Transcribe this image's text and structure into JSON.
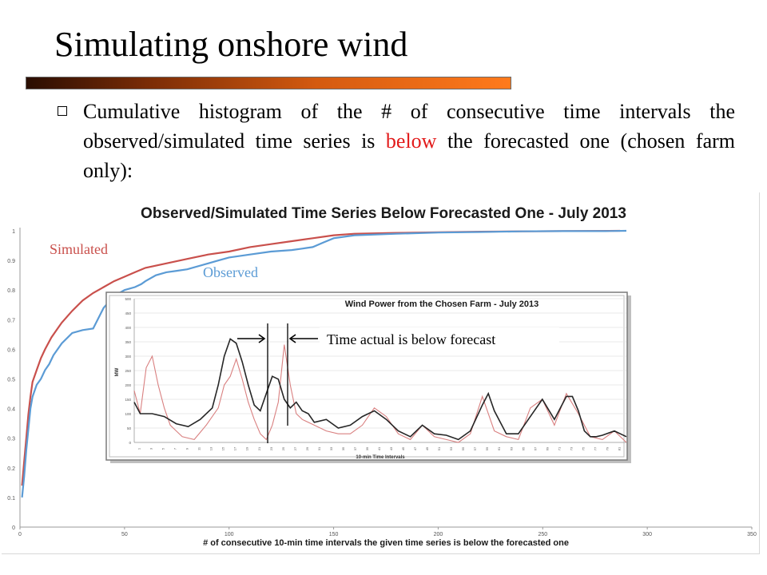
{
  "slide": {
    "title": "Simulating onshore wind",
    "bullet_part1": "Cumulative histogram of the # of consecutive time intervals the observed/simulated time series is ",
    "bullet_highlight": "below",
    "bullet_part2": " the forecasted one (chosen farm only):"
  },
  "annotations": {
    "simulated_label": "Simulated",
    "observed_label": "Observed",
    "inset_callout": "Time actual is below forecast"
  },
  "colors": {
    "simulated": "#c9504c",
    "observed": "#5b9bd5",
    "highlight": "#e21a1a",
    "inset_actual": "#262626",
    "inset_forecast": "#d98080"
  },
  "chart_data": [
    {
      "type": "line",
      "title": "Observed/Simulated Time Series Below Forecasted One - July 2013",
      "xlabel": "# of consecutive 10-min time intervals the given time series is below the forecasted one",
      "ylabel": "",
      "xlim": [
        0,
        350
      ],
      "ylim": [
        0,
        1
      ],
      "x_ticks": [
        0,
        50,
        100,
        150,
        200,
        250,
        300,
        350
      ],
      "y_ticks": [
        0,
        0.1,
        0.2,
        0.3,
        0.4,
        0.5,
        0.6,
        0.7,
        0.8,
        0.9,
        1
      ],
      "grid": false,
      "series": [
        {
          "name": "Simulated",
          "x": [
            1,
            2,
            3,
            4,
            5,
            6,
            8,
            10,
            12,
            15,
            18,
            20,
            25,
            30,
            35,
            40,
            45,
            50,
            55,
            60,
            70,
            80,
            90,
            100,
            110,
            120,
            130,
            140,
            150,
            160,
            180,
            200,
            220,
            240,
            260,
            287
          ],
          "y": [
            0.14,
            0.22,
            0.3,
            0.38,
            0.44,
            0.49,
            0.53,
            0.57,
            0.6,
            0.64,
            0.67,
            0.69,
            0.73,
            0.765,
            0.79,
            0.81,
            0.83,
            0.845,
            0.86,
            0.875,
            0.89,
            0.905,
            0.92,
            0.93,
            0.945,
            0.955,
            0.965,
            0.975,
            0.985,
            0.99,
            0.993,
            0.995,
            0.997,
            0.998,
            0.999,
            1.0
          ]
        },
        {
          "name": "Observed",
          "x": [
            1,
            2,
            3,
            4,
            5,
            6,
            8,
            10,
            12,
            14,
            16,
            18,
            20,
            25,
            30,
            35,
            40,
            45,
            50,
            55,
            58,
            60,
            65,
            70,
            75,
            80,
            90,
            95,
            100,
            110,
            120,
            130,
            135,
            140,
            145,
            150,
            160,
            180,
            200,
            220,
            240,
            260,
            280,
            290
          ],
          "y": [
            0.1,
            0.17,
            0.26,
            0.33,
            0.4,
            0.44,
            0.48,
            0.5,
            0.53,
            0.55,
            0.58,
            0.6,
            0.62,
            0.655,
            0.665,
            0.67,
            0.74,
            0.78,
            0.8,
            0.81,
            0.82,
            0.83,
            0.85,
            0.86,
            0.865,
            0.87,
            0.89,
            0.9,
            0.91,
            0.92,
            0.93,
            0.935,
            0.94,
            0.945,
            0.96,
            0.975,
            0.985,
            0.99,
            0.994,
            0.996,
            0.998,
            0.999,
            0.999,
            1.0
          ]
        }
      ]
    },
    {
      "type": "line",
      "title": "Wind Power from the Chosen Farm - July 2013",
      "xlabel": "10-min Time Intervals",
      "ylabel": "MW",
      "xlim": [
        0,
        82
      ],
      "ylim": [
        0,
        500
      ],
      "y_ticks": [
        0,
        50,
        100,
        150,
        200,
        250,
        300,
        350,
        400,
        450,
        500
      ],
      "x_ticks": [
        1,
        3,
        5,
        7,
        9,
        11,
        13,
        15,
        17,
        19,
        21,
        23,
        25,
        27,
        29,
        31,
        33,
        35,
        37,
        39,
        41,
        43,
        45,
        47,
        49,
        51,
        53,
        55,
        57,
        59,
        61,
        63,
        65,
        67,
        69,
        71,
        73,
        75,
        77,
        79,
        81
      ],
      "grid": true,
      "series": [
        {
          "name": "",
          "x": [
            0,
            1,
            3,
            5,
            7,
            9,
            11,
            13,
            14,
            15,
            16,
            17,
            18,
            19,
            20,
            21,
            22,
            23,
            24,
            25,
            26,
            27,
            28,
            29,
            30,
            32,
            34,
            36,
            38,
            40,
            42,
            44,
            46,
            48,
            50,
            52,
            54,
            56,
            58,
            59,
            60,
            61,
            62,
            64,
            66,
            68,
            70,
            72,
            73,
            74,
            75,
            76,
            77,
            78,
            80,
            82
          ],
          "y": [
            140,
            100,
            100,
            90,
            65,
            55,
            80,
            120,
            200,
            300,
            360,
            345,
            280,
            200,
            130,
            110,
            170,
            230,
            220,
            150,
            120,
            140,
            110,
            100,
            70,
            80,
            50,
            60,
            90,
            110,
            80,
            40,
            20,
            60,
            30,
            25,
            10,
            40,
            130,
            170,
            110,
            70,
            30,
            30,
            90,
            150,
            80,
            160,
            160,
            110,
            40,
            20,
            20,
            25,
            40,
            20
          ]
        },
        {
          "name": "",
          "x": [
            0,
            1,
            2,
            3,
            4,
            5,
            6,
            7,
            8,
            10,
            12,
            14,
            15,
            16,
            17,
            18,
            19,
            20,
            21,
            22,
            23,
            24,
            25,
            26,
            27,
            28,
            30,
            32,
            34,
            36,
            38,
            40,
            42,
            44,
            46,
            48,
            50,
            52,
            54,
            56,
            58,
            60,
            62,
            64,
            66,
            68,
            70,
            72,
            74,
            76,
            78,
            80,
            82
          ],
          "y": [
            180,
            100,
            260,
            300,
            200,
            120,
            60,
            40,
            20,
            10,
            60,
            120,
            200,
            230,
            290,
            220,
            140,
            80,
            30,
            10,
            60,
            140,
            340,
            200,
            100,
            80,
            60,
            40,
            30,
            30,
            60,
            120,
            90,
            30,
            10,
            60,
            20,
            10,
            0,
            30,
            160,
            40,
            20,
            10,
            120,
            150,
            60,
            170,
            100,
            20,
            10,
            40,
            0
          ]
        }
      ]
    }
  ]
}
